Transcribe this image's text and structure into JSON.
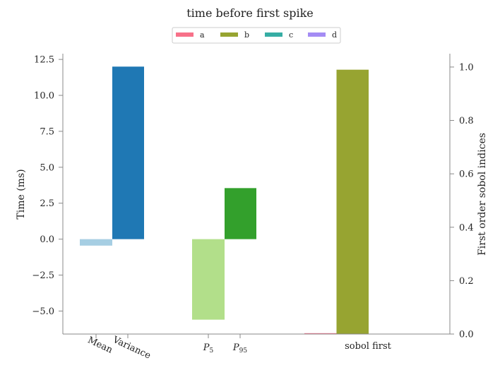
{
  "chart_data": {
    "type": "bar",
    "title": "time before first spike",
    "left_axis": {
      "label": "Time (ms)",
      "ylim": [
        -6.6,
        12.9
      ],
      "ticks": [
        12.5,
        10.0,
        7.5,
        5.0,
        2.5,
        0.0,
        -2.5,
        -5.0
      ],
      "tick_labels": [
        "12.5",
        "10.0",
        "7.5",
        "5.0",
        "2.5",
        "0.0",
        "−2.5",
        "−5.0"
      ]
    },
    "right_axis": {
      "label": "First order sobol indices",
      "ylim": [
        0.0,
        1.05
      ],
      "ticks": [
        0.0,
        0.2,
        0.4,
        0.6,
        0.8,
        1.0
      ],
      "tick_labels": [
        "0.0",
        "0.2",
        "0.4",
        "0.6",
        "0.8",
        "1.0"
      ]
    },
    "categories": [
      {
        "id": "mean",
        "label": "Mean"
      },
      {
        "id": "variance",
        "label": "Variance"
      },
      {
        "id": "p5",
        "label_main": "P",
        "label_sub": "5"
      },
      {
        "id": "p95",
        "label_main": "P",
        "label_sub": "95"
      },
      {
        "id": "sobol",
        "label": "sobol first"
      }
    ],
    "statistics_bars": [
      {
        "category": "mean",
        "value": -0.45,
        "color": "#a6cee3"
      },
      {
        "category": "variance",
        "value": 12.0,
        "color": "#1f78b4"
      },
      {
        "category": "p5",
        "value": -5.6,
        "color": "#b2df8a"
      },
      {
        "category": "p95",
        "value": 3.55,
        "color": "#33a02c"
      }
    ],
    "sobol_series": [
      {
        "name": "a",
        "value": 0.002,
        "color": "#f77189"
      },
      {
        "name": "b",
        "value": 0.99,
        "color": "#97a431"
      },
      {
        "name": "c",
        "value": 0.0,
        "color": "#36ada4"
      },
      {
        "name": "d",
        "value": 0.0,
        "color": "#a48cf4"
      }
    ],
    "legend": {
      "placement": "top-center",
      "entries": [
        "a",
        "b",
        "c",
        "d"
      ]
    }
  }
}
